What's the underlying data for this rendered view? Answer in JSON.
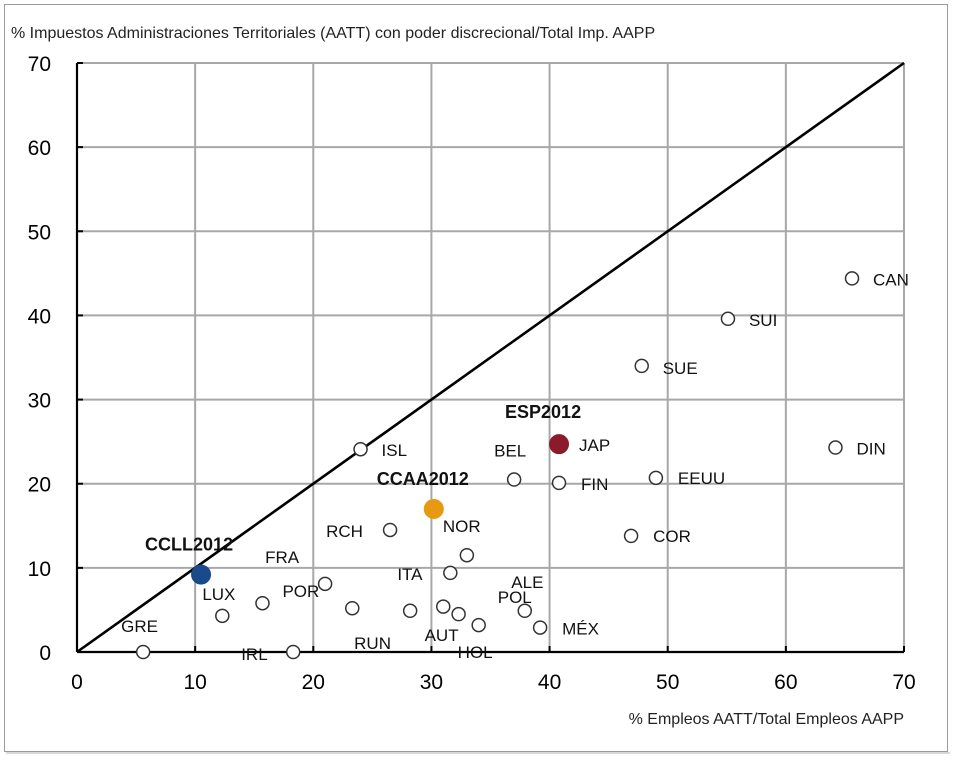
{
  "chart_data": {
    "type": "scatter",
    "title": "",
    "ylabel": "% Impuestos Administraciones Territoriales (AATT) con poder discrecional/Total Imp. AAPP",
    "xlabel": "% Empleos AATT/Total Empleos  AAPP",
    "xlim": [
      0,
      70
    ],
    "ylim": [
      0,
      70
    ],
    "xticks": [
      "0",
      "10",
      "20",
      "30",
      "40",
      "50",
      "60",
      "70"
    ],
    "yticks": [
      "0",
      "10",
      "20",
      "30",
      "40",
      "50",
      "60",
      "70"
    ],
    "grid": true,
    "reference_line": {
      "name": "45-degree line",
      "from": [
        0,
        0
      ],
      "to": [
        70,
        70
      ]
    },
    "points": [
      {
        "x": 5.6,
        "y": 0.0,
        "label": "GRE"
      },
      {
        "x": 18.3,
        "y": 0.0,
        "label": "IRL"
      },
      {
        "x": 12.3,
        "y": 4.3,
        "label": "LUX"
      },
      {
        "x": 15.7,
        "y": 5.8,
        "label": "POR"
      },
      {
        "x": 21.0,
        "y": 8.1,
        "label": "FRA"
      },
      {
        "x": 23.3,
        "y": 5.2,
        "label": ""
      },
      {
        "x": 28.2,
        "y": 4.9,
        "label": "RUN"
      },
      {
        "x": 31.6,
        "y": 9.4,
        "label": "ITA"
      },
      {
        "x": 31.0,
        "y": 5.4,
        "label": ""
      },
      {
        "x": 32.3,
        "y": 4.5,
        "label": "AUT"
      },
      {
        "x": 33.0,
        "y": 11.5,
        "label": "NOR"
      },
      {
        "x": 34.0,
        "y": 3.2,
        "label": "HOL"
      },
      {
        "x": 37.9,
        "y": 4.9,
        "label": "POL"
      },
      {
        "x": 39.2,
        "y": 2.9,
        "label": "MÉX"
      },
      {
        "x": 38.2,
        "y": 4.9,
        "label": "ALE"
      },
      {
        "x": 26.5,
        "y": 14.5,
        "label": "RCH"
      },
      {
        "x": 24.0,
        "y": 24.1,
        "label": "ISL"
      },
      {
        "x": 37.0,
        "y": 20.5,
        "label": "BEL"
      },
      {
        "x": 40.8,
        "y": 20.1,
        "label": "FIN"
      },
      {
        "x": 49.0,
        "y": 20.7,
        "label": "EEUU"
      },
      {
        "x": 46.9,
        "y": 13.8,
        "label": "COR"
      },
      {
        "x": 47.8,
        "y": 34.0,
        "label": "SUE"
      },
      {
        "x": 55.1,
        "y": 39.6,
        "label": "SUI"
      },
      {
        "x": 65.6,
        "y": 44.4,
        "label": "CAN"
      },
      {
        "x": 64.2,
        "y": 24.3,
        "label": "DIN"
      }
    ],
    "highlighted": [
      {
        "x": 10.5,
        "y": 9.2,
        "label": "CCLL2012",
        "color": "#1a4a8a"
      },
      {
        "x": 30.2,
        "y": 17.0,
        "label": "CCAA2012",
        "color": "#e69a12"
      },
      {
        "x": 40.8,
        "y": 24.7,
        "label": "ESP2012",
        "color": "#8b1a2b"
      }
    ],
    "extra_labels": [
      {
        "label": "JAP"
      }
    ],
    "colors": {
      "grid": "#a8a8a8",
      "axis": "#000000",
      "marker_edge": "#333333",
      "marker_fill": "#ffffff"
    }
  }
}
